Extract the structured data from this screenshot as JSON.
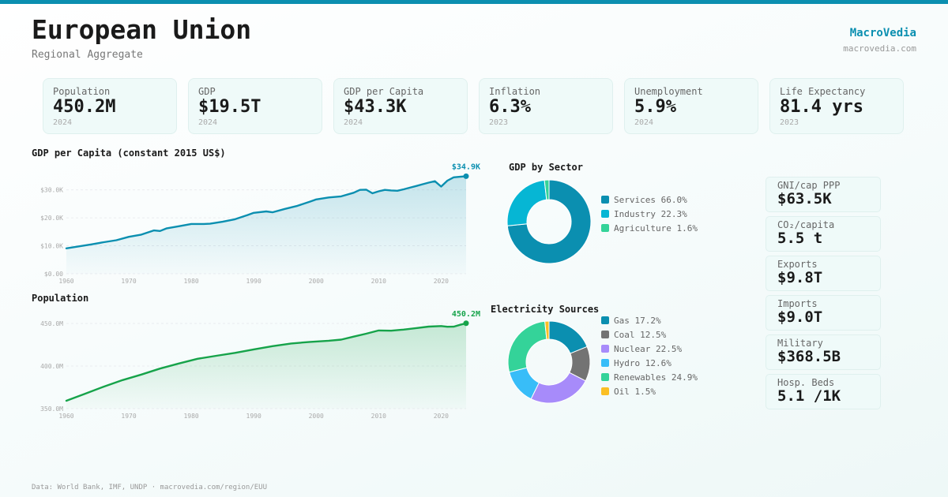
{
  "header": {
    "title": "European Union",
    "subtitle": "Regional Aggregate",
    "brand": "MacroVedia",
    "brand_url": "macrovedia.com"
  },
  "colors": {
    "accent": "#0b8fb0",
    "gdp_line": "#0b8fb0",
    "pop_line": "#16a34a"
  },
  "kpis": [
    {
      "label": "Population",
      "value": "450.2M",
      "year": "2024"
    },
    {
      "label": "GDP",
      "value": "$19.5T",
      "year": "2024"
    },
    {
      "label": "GDP per Capita",
      "value": "$43.3K",
      "year": "2024"
    },
    {
      "label": "Inflation",
      "value": "6.3%",
      "year": "2023"
    },
    {
      "label": "Unemployment",
      "value": "5.9%",
      "year": "2024"
    },
    {
      "label": "Life Expectancy",
      "value": "81.4 yrs",
      "year": "2023"
    }
  ],
  "side_stats": [
    {
      "label": "GNI/cap PPP",
      "value": "$63.5K"
    },
    {
      "label": "CO₂/capita",
      "value": "5.5 t"
    },
    {
      "label": "Exports",
      "value": "$9.8T"
    },
    {
      "label": "Imports",
      "value": "$9.0T"
    },
    {
      "label": "Military",
      "value": "$368.5B"
    },
    {
      "label": "Hosp. Beds",
      "value": "5.1 /1K"
    }
  ],
  "footer": "Data: World Bank, IMF, UNDP · macrovedia.com/region/EUU",
  "chart_data": [
    {
      "id": "gdp_per_capita",
      "type": "area",
      "title": "GDP per Capita (constant 2015 US$)",
      "xlabel": "",
      "ylabel": "",
      "x_ticks": [
        1960,
        1970,
        1980,
        1990,
        2000,
        2010,
        2020
      ],
      "y_ticks": [
        0,
        10000,
        20000,
        30000
      ],
      "y_tick_labels": [
        "$0.00",
        "$10.0K",
        "$20.0K",
        "$30.0K"
      ],
      "xlim": [
        1960,
        2024
      ],
      "ylim": [
        0,
        35000
      ],
      "grid": true,
      "end_label": "$34.9K",
      "x": [
        1960,
        1962,
        1964,
        1966,
        1968,
        1970,
        1972,
        1974,
        1975,
        1976,
        1978,
        1980,
        1982,
        1983,
        1985,
        1987,
        1989,
        1990,
        1992,
        1993,
        1995,
        1997,
        1999,
        2000,
        2002,
        2004,
        2006,
        2007,
        2008,
        2009,
        2010,
        2011,
        2012,
        2013,
        2014,
        2015,
        2016,
        2017,
        2018,
        2019,
        2020,
        2021,
        2022,
        2023,
        2024
      ],
      "values": [
        9100,
        9800,
        10500,
        11300,
        12000,
        13200,
        14000,
        15500,
        15300,
        16200,
        17000,
        17800,
        17800,
        17900,
        18600,
        19500,
        21000,
        21800,
        22300,
        22000,
        23200,
        24300,
        25800,
        26600,
        27300,
        27700,
        29000,
        30000,
        30100,
        28800,
        29500,
        30000,
        29800,
        29700,
        30200,
        30800,
        31400,
        32000,
        32600,
        33100,
        31200,
        33300,
        34500,
        34700,
        34900
      ]
    },
    {
      "id": "population",
      "type": "area",
      "title": "Population",
      "xlabel": "",
      "ylabel": "",
      "x_ticks": [
        1960,
        1970,
        1980,
        1990,
        2000,
        2010,
        2020
      ],
      "y_ticks": [
        350000000,
        400000000,
        450000000
      ],
      "y_tick_labels": [
        "350.0M",
        "400.0M",
        "450.0M"
      ],
      "xlim": [
        1960,
        2024
      ],
      "ylim": [
        350000000,
        450000000
      ],
      "grid": true,
      "end_label": "450.2M",
      "x": [
        1960,
        1963,
        1966,
        1969,
        1972,
        1975,
        1978,
        1981,
        1984,
        1987,
        1990,
        1993,
        1996,
        1999,
        2002,
        2004,
        2006,
        2008,
        2010,
        2012,
        2014,
        2016,
        2018,
        2020,
        2021,
        2022,
        2023,
        2024
      ],
      "values": [
        359300000,
        367500000,
        375800000,
        383500000,
        390000000,
        397000000,
        403000000,
        408500000,
        412000000,
        415500000,
        419500000,
        423300000,
        426500000,
        428300000,
        429700000,
        431000000,
        434500000,
        438000000,
        441800000,
        441500000,
        442800000,
        444500000,
        446300000,
        446900000,
        446100000,
        446200000,
        448300000,
        450200000
      ]
    },
    {
      "id": "gdp_by_sector",
      "type": "pie",
      "title": "GDP by Sector",
      "labels": [
        "Services",
        "Industry",
        "Agriculture"
      ],
      "values": [
        66.0,
        22.3,
        1.6
      ],
      "colors": [
        "#0b8fb0",
        "#06b6d4",
        "#34d399"
      ],
      "legend": "right"
    },
    {
      "id": "electricity_sources",
      "type": "pie",
      "title": "Electricity Sources",
      "labels": [
        "Gas",
        "Coal",
        "Nuclear",
        "Hydro",
        "Renewables",
        "Oil"
      ],
      "values": [
        17.2,
        12.5,
        22.5,
        12.6,
        24.9,
        1.5
      ],
      "colors": [
        "#0b8fb0",
        "#737373",
        "#a78bfa",
        "#38bdf8",
        "#34d399",
        "#fbbf24"
      ],
      "legend": "right"
    }
  ]
}
